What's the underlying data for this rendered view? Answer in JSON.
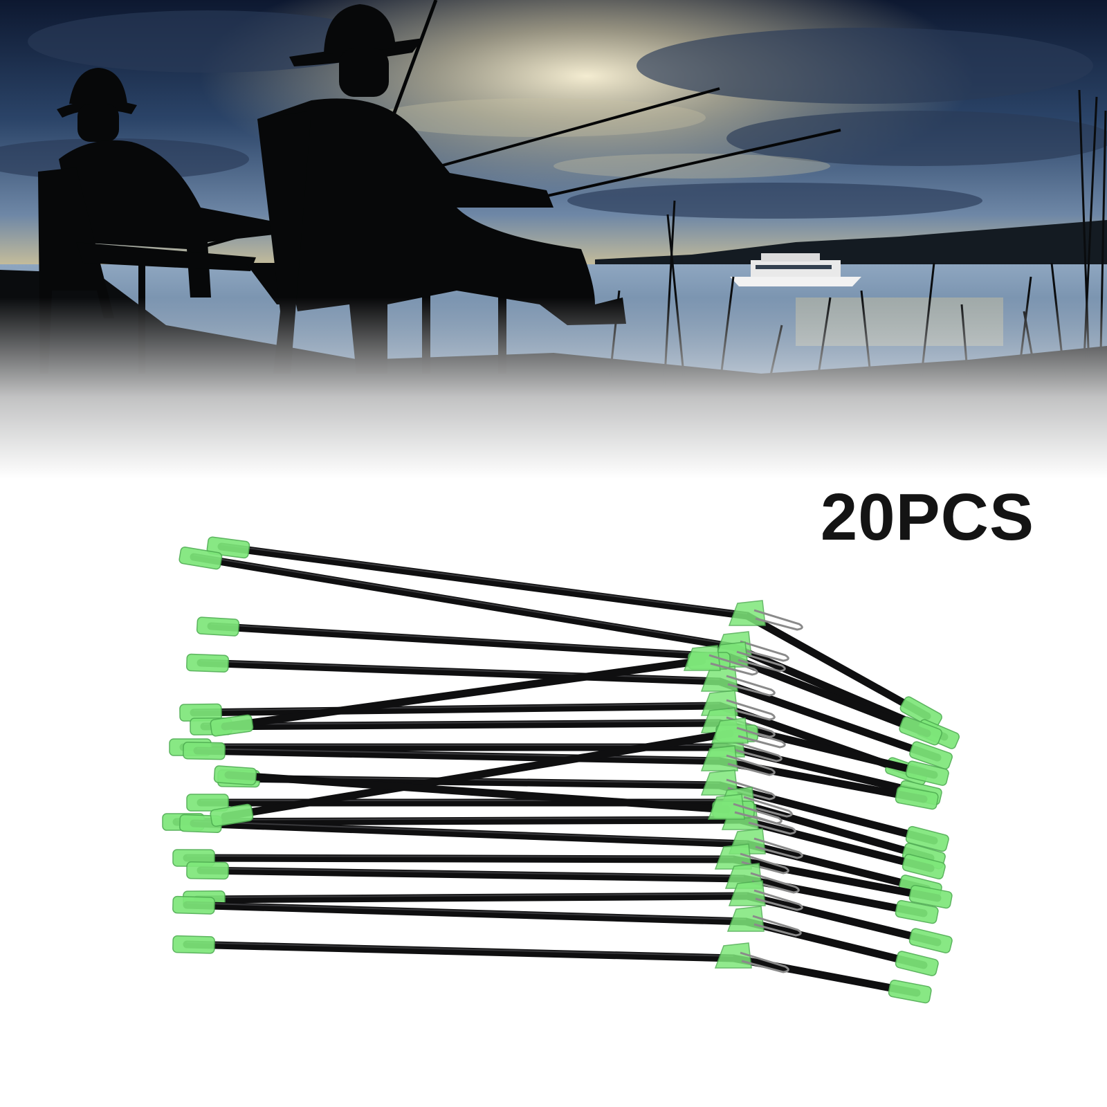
{
  "product": {
    "quantity_label": "20PCS",
    "item_count": 20
  },
  "colors": {
    "sky_top": "#0d1830",
    "sky_mid": "#4d6a8e",
    "sunset_glow": "#f2e4b6",
    "water": "#7f9bb7",
    "silhouette": "#070809",
    "rod_body": "#0f0f10",
    "tip_green": "#7ee77a",
    "background": "#ffffff",
    "label_text": "#141414"
  },
  "icons": {
    "scene": "fishing-silhouette-scene",
    "product": "fishing-boom-rod-icon"
  }
}
